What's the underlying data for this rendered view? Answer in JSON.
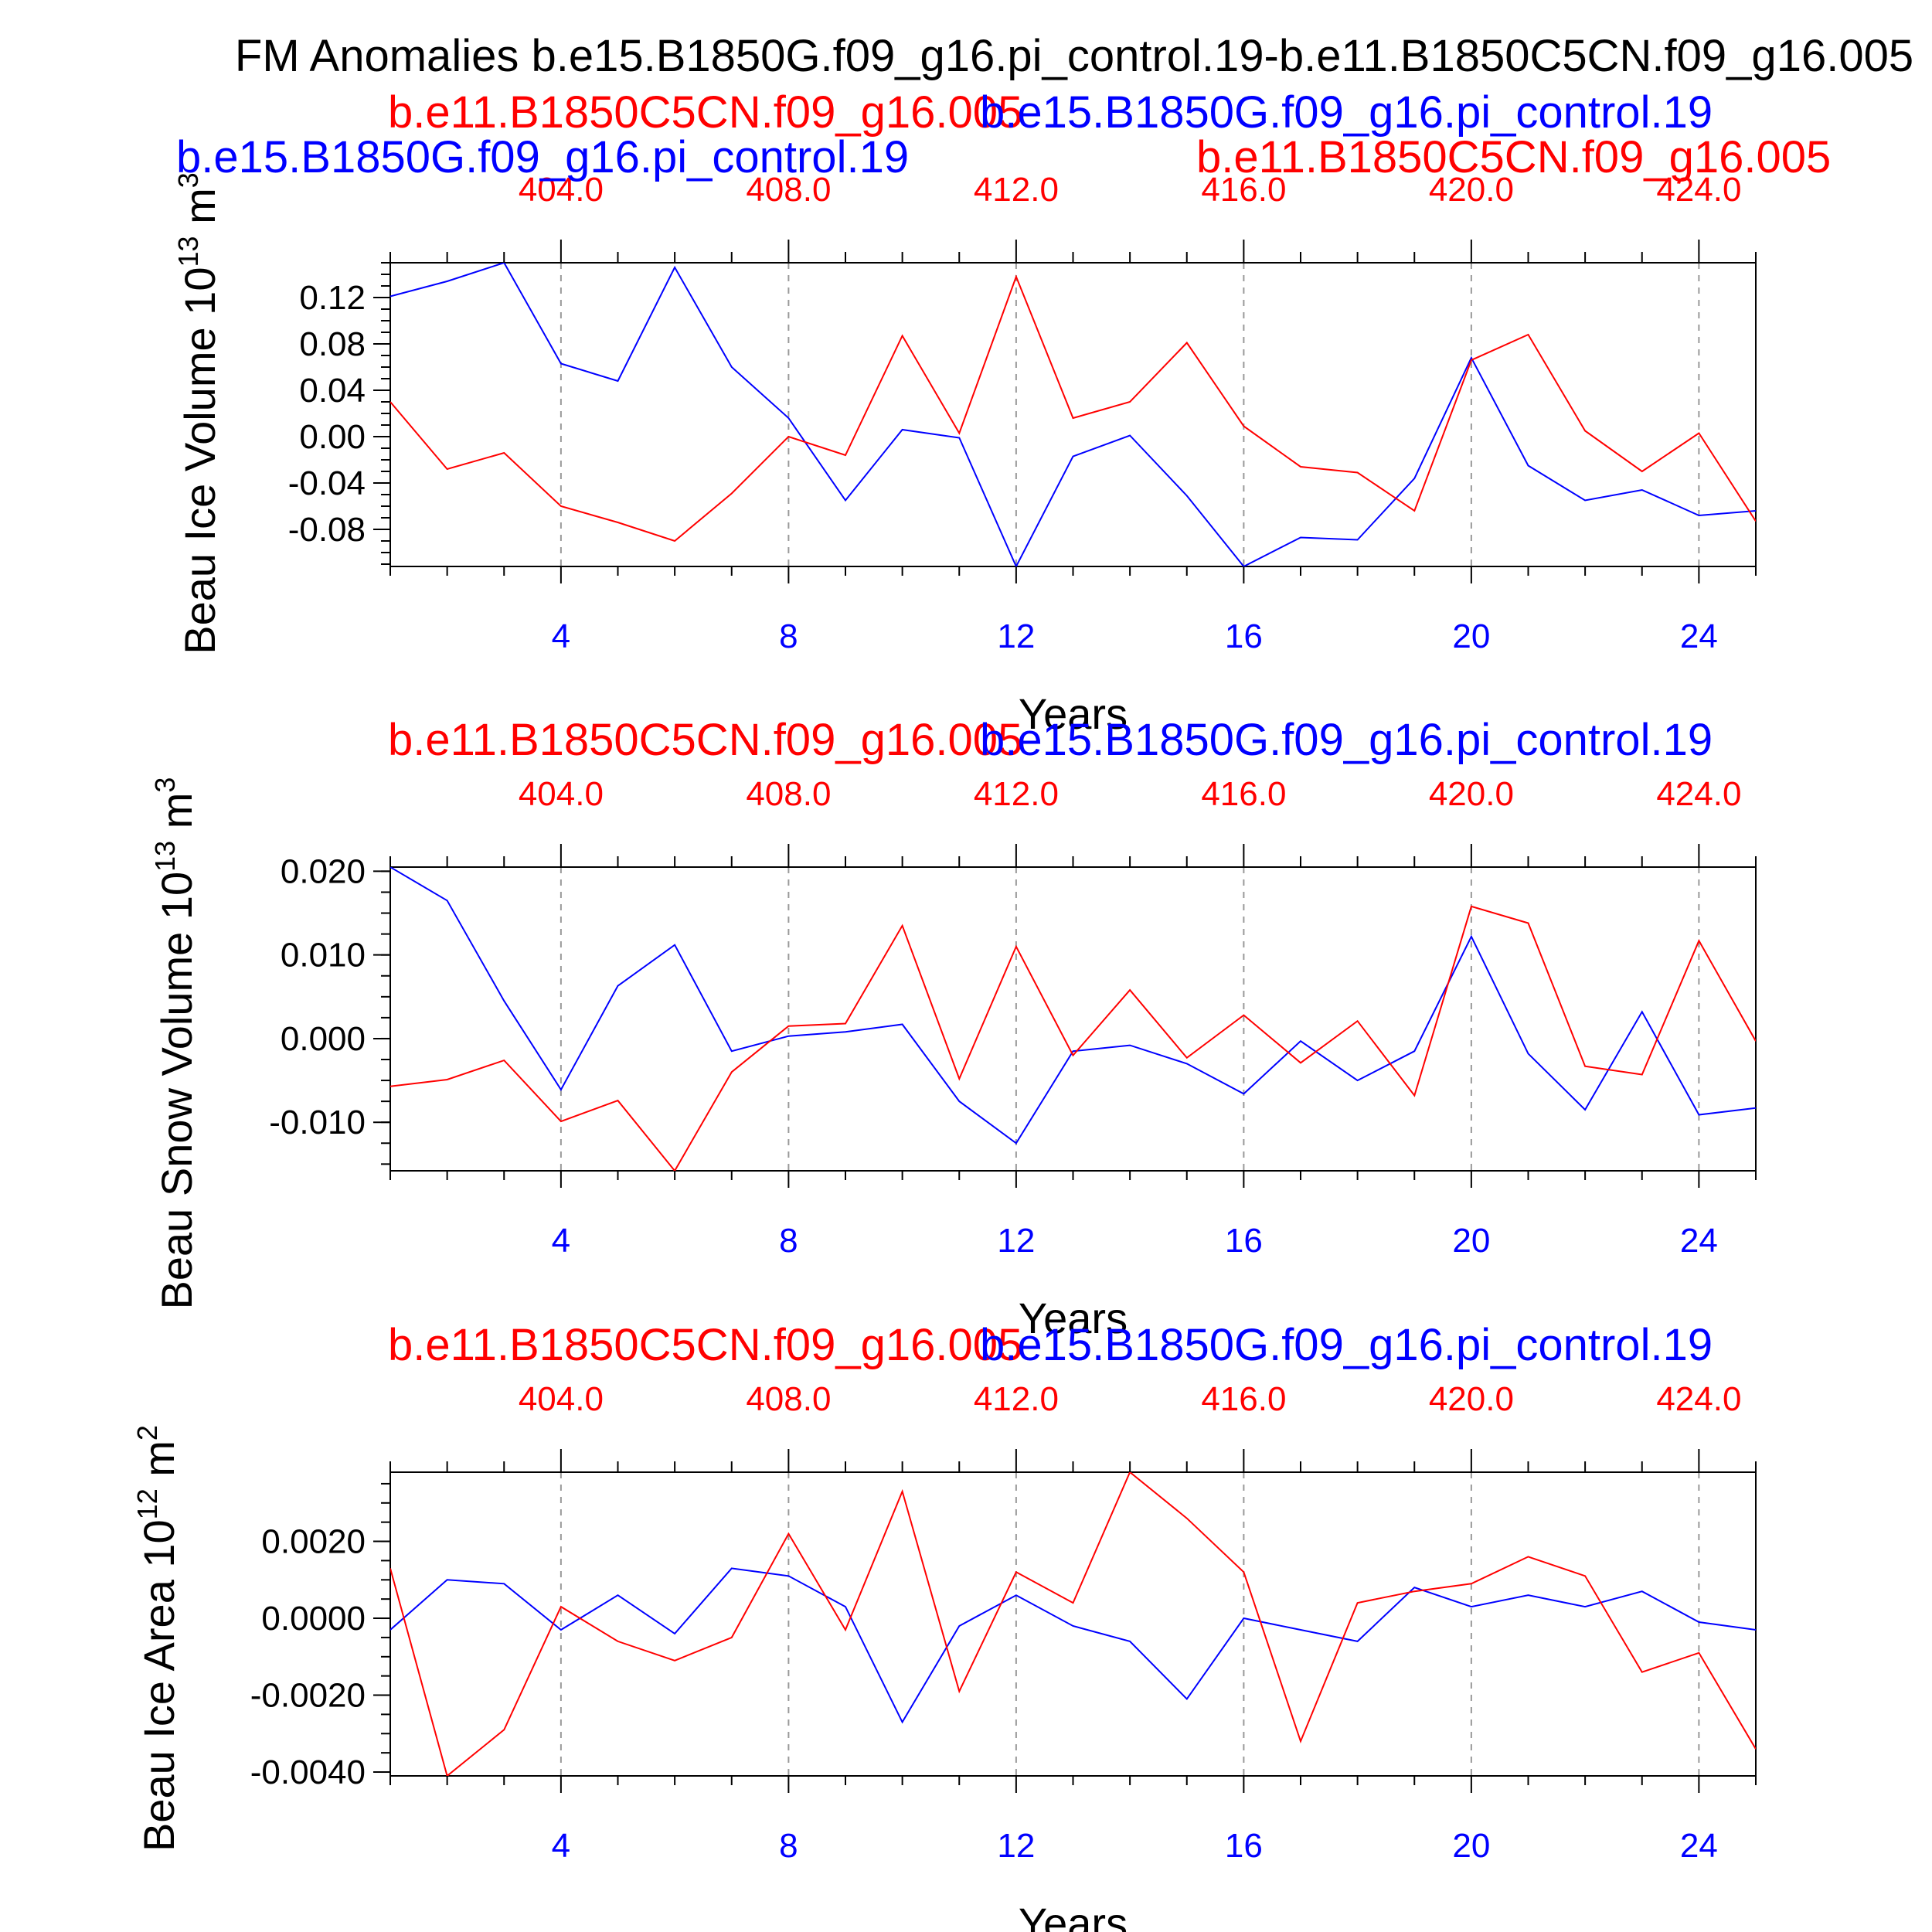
{
  "title": "FM Anomalies b.e15.B1850G.f09_g16.pi_control.19-b.e11.B1850C5CN.f09_g16.005",
  "colors": {
    "case_a": "#0000ff",
    "case_b": "#ff0000"
  },
  "case_labels": {
    "case_a": "b.e15.B1850G.f09_g16.pi_control.19",
    "case_b": "b.e11.B1850C5CN.f09_g16.005"
  },
  "chart_data": [
    {
      "type": "line",
      "ylabel": "Beau Ice Volume 10",
      "ylabel_exp": "13",
      "ylabel_unit": " m",
      "ylabel_unit_exp": "3",
      "xlabel": "Years",
      "xlim": [
        1,
        25
      ],
      "ylim": [
        -0.112,
        0.15
      ],
      "yticks": [
        "0.12",
        "0.08",
        "0.04",
        "0.00",
        "-0.04",
        "-0.08"
      ],
      "xticks": [
        "4",
        "8",
        "12",
        "16",
        "20",
        "24"
      ],
      "top_ticks": [
        "404.0",
        "408.0",
        "412.0",
        "416.0",
        "420.0",
        "424.0"
      ],
      "x": [
        1,
        2,
        3,
        4,
        5,
        6,
        7,
        8,
        9,
        10,
        11,
        12,
        13,
        14,
        15,
        16,
        17,
        18,
        19,
        20,
        21,
        22,
        23,
        24,
        25
      ],
      "series": [
        {
          "name": "b.e15.B1850G.f09_g16.pi_control.19",
          "color": "#0000ff",
          "values": [
            0.121,
            0.134,
            0.15,
            0.063,
            0.048,
            0.146,
            0.06,
            0.016,
            -0.055,
            0.006,
            -0.001,
            -0.112,
            -0.017,
            0.001,
            -0.051,
            -0.112,
            -0.087,
            -0.089,
            -0.036,
            0.068,
            -0.025,
            -0.055,
            -0.046,
            -0.068,
            -0.064
          ]
        },
        {
          "name": "b.e11.B1850C5CN.f09_g16.005",
          "color": "#ff0000",
          "values": [
            0.03,
            -0.028,
            -0.014,
            -0.06,
            -0.074,
            -0.09,
            -0.049,
            0.0,
            -0.016,
            0.087,
            0.003,
            0.138,
            0.016,
            0.03,
            0.081,
            0.009,
            -0.026,
            -0.031,
            -0.064,
            0.066,
            0.088,
            0.005,
            -0.03,
            0.003,
            -0.073
          ]
        }
      ]
    },
    {
      "type": "line",
      "ylabel": "Beau Snow Volume 10",
      "ylabel_exp": "13",
      "ylabel_unit": " m",
      "ylabel_unit_exp": "3",
      "xlabel": "Years",
      "xlim": [
        1,
        25
      ],
      "ylim": [
        -0.0158,
        0.0205
      ],
      "yticks": [
        "0.020",
        "0.010",
        "0.000",
        "-0.010"
      ],
      "xticks": [
        "4",
        "8",
        "12",
        "16",
        "20",
        "24"
      ],
      "top_ticks": [
        "404.0",
        "408.0",
        "412.0",
        "416.0",
        "420.0",
        "424.0"
      ],
      "x": [
        1,
        2,
        3,
        4,
        5,
        6,
        7,
        8,
        9,
        10,
        11,
        12,
        13,
        14,
        15,
        16,
        17,
        18,
        19,
        20,
        21,
        22,
        23,
        24,
        25
      ],
      "series": [
        {
          "name": "b.e15.B1850G.f09_g16.pi_control.19",
          "color": "#0000ff",
          "values": [
            0.0205,
            0.0165,
            0.0045,
            -0.0061,
            0.0063,
            0.0112,
            -0.0015,
            0.0003,
            0.0008,
            0.0017,
            -0.0075,
            -0.0125,
            -0.0015,
            -0.0008,
            -0.003,
            -0.0066,
            -0.0003,
            -0.005,
            -0.0015,
            0.0122,
            -0.0018,
            -0.0085,
            0.0032,
            -0.0091,
            -0.0083
          ]
        },
        {
          "name": "b.e11.B1850C5CN.f09_g16.005",
          "color": "#ff0000",
          "values": [
            -0.0057,
            -0.0049,
            -0.0026,
            -0.0099,
            -0.0074,
            -0.0158,
            -0.004,
            0.0015,
            0.0018,
            0.0135,
            -0.0048,
            0.011,
            -0.002,
            0.0058,
            -0.0023,
            0.0028,
            -0.0029,
            0.0021,
            -0.0068,
            0.0158,
            0.0138,
            -0.0033,
            -0.0043,
            0.0117,
            -0.0003
          ]
        }
      ]
    },
    {
      "type": "line",
      "ylabel": "Beau Ice Area 10",
      "ylabel_exp": "12",
      "ylabel_unit": " m",
      "ylabel_unit_exp": "2",
      "xlabel": "Years",
      "xlim": [
        1,
        25
      ],
      "ylim": [
        -0.0041,
        0.0038
      ],
      "yticks": [
        "0.0020",
        "0.0000",
        "-0.0020",
        "-0.0040"
      ],
      "xticks": [
        "4",
        "8",
        "12",
        "16",
        "20",
        "24"
      ],
      "top_ticks": [
        "404.0",
        "408.0",
        "412.0",
        "416.0",
        "420.0",
        "424.0"
      ],
      "x": [
        1,
        2,
        3,
        4,
        5,
        6,
        7,
        8,
        9,
        10,
        11,
        12,
        13,
        14,
        15,
        16,
        17,
        18,
        19,
        20,
        21,
        22,
        23,
        24,
        25
      ],
      "series": [
        {
          "name": "b.e15.B1850G.f09_g16.pi_control.19",
          "color": "#0000ff",
          "values": [
            -0.0003,
            0.001,
            0.0009,
            -0.0003,
            0.0006,
            -0.0004,
            0.0013,
            0.0011,
            0.0003,
            -0.0027,
            -0.0002,
            0.0006,
            -0.0002,
            -0.0006,
            -0.0021,
            0.0,
            -0.0003,
            -0.0006,
            0.0008,
            0.0003,
            0.0006,
            0.0003,
            0.0007,
            -0.0001,
            -0.0003
          ]
        },
        {
          "name": "b.e11.B1850C5CN.f09_g16.005",
          "color": "#ff0000",
          "values": [
            0.0013,
            -0.0041,
            -0.0029,
            0.0003,
            -0.0006,
            -0.0011,
            -0.0005,
            0.0022,
            -0.0003,
            0.0033,
            -0.0019,
            0.0012,
            0.0004,
            0.0038,
            0.0026,
            0.0012,
            -0.0032,
            0.0004,
            0.0007,
            0.0009,
            0.0016,
            0.0011,
            -0.0014,
            -0.0009,
            -0.0034
          ]
        }
      ]
    }
  ]
}
